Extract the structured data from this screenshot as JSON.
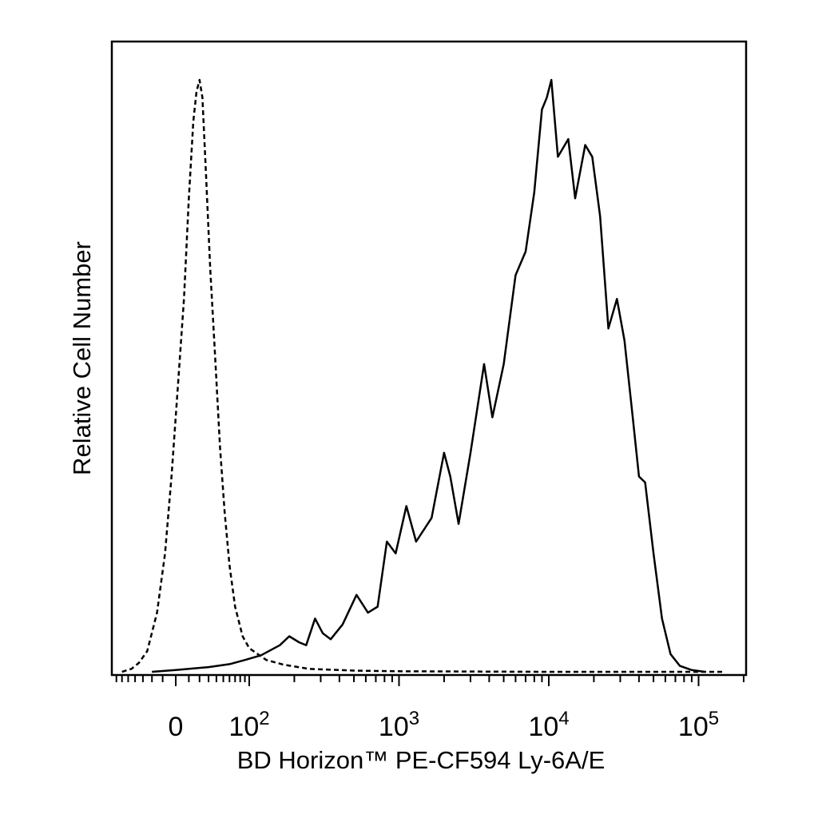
{
  "chart_data": {
    "type": "line",
    "title": "",
    "xlabel": "BD Horizon™ PE-CF594 Ly-6A/E",
    "ylabel": "Relative Cell Number",
    "x_scale": "biexponential",
    "xlim": [
      -100,
      180000
    ],
    "ylim": [
      0,
      100
    ],
    "grid": false,
    "legend": "none",
    "x_tick_labels": [
      {
        "value": 0,
        "label": "0",
        "exp": ""
      },
      {
        "value": 100,
        "label": "10",
        "exp": "2"
      },
      {
        "value": 1000,
        "label": "10",
        "exp": "3"
      },
      {
        "value": 10000,
        "label": "10",
        "exp": "4"
      },
      {
        "value": 100000,
        "label": "10",
        "exp": "5"
      }
    ],
    "series": [
      {
        "style": "dashed",
        "color": "#000000",
        "points": [
          [
            -60,
            0
          ],
          [
            -45,
            0.5
          ],
          [
            -35,
            1.5
          ],
          [
            -25,
            3.5
          ],
          [
            -15,
            10
          ],
          [
            -8,
            20
          ],
          [
            -3,
            33
          ],
          [
            2,
            50
          ],
          [
            6,
            63
          ],
          [
            10,
            80
          ],
          [
            14,
            93
          ],
          [
            17,
            98
          ],
          [
            20,
            100
          ],
          [
            23,
            97
          ],
          [
            27,
            84
          ],
          [
            32,
            68
          ],
          [
            38,
            54
          ],
          [
            45,
            38
          ],
          [
            52,
            27
          ],
          [
            60,
            18
          ],
          [
            70,
            11
          ],
          [
            85,
            6
          ],
          [
            100,
            4
          ],
          [
            130,
            2
          ],
          [
            170,
            1.2
          ],
          [
            250,
            0.5
          ],
          [
            500,
            0.2
          ],
          [
            1000,
            0.1
          ],
          [
            10000,
            0
          ],
          [
            150000,
            0
          ]
        ]
      },
      {
        "style": "solid",
        "color": "#000000",
        "points": [
          [
            -20,
            0
          ],
          [
            0,
            0.3
          ],
          [
            30,
            0.8
          ],
          [
            60,
            1.3
          ],
          [
            90,
            2
          ],
          [
            120,
            2.8
          ],
          [
            160,
            4.5
          ],
          [
            185,
            6
          ],
          [
            215,
            5
          ],
          [
            240,
            4.5
          ],
          [
            275,
            9
          ],
          [
            310,
            6.5
          ],
          [
            350,
            5.5
          ],
          [
            420,
            8
          ],
          [
            520,
            13
          ],
          [
            620,
            10
          ],
          [
            720,
            11
          ],
          [
            830,
            22
          ],
          [
            950,
            20
          ],
          [
            1120,
            28
          ],
          [
            1300,
            22
          ],
          [
            1650,
            26
          ],
          [
            2000,
            37
          ],
          [
            2200,
            33
          ],
          [
            2500,
            25
          ],
          [
            3000,
            37
          ],
          [
            3700,
            52
          ],
          [
            4200,
            43
          ],
          [
            5000,
            52
          ],
          [
            6000,
            67
          ],
          [
            7000,
            71
          ],
          [
            8000,
            81
          ],
          [
            9000,
            95
          ],
          [
            9700,
            97
          ],
          [
            10400,
            100
          ],
          [
            11500,
            87
          ],
          [
            13500,
            90
          ],
          [
            15000,
            80
          ],
          [
            17500,
            89
          ],
          [
            19500,
            87
          ],
          [
            22000,
            77
          ],
          [
            25000,
            58
          ],
          [
            28500,
            63
          ],
          [
            32000,
            56
          ],
          [
            36000,
            44
          ],
          [
            40000,
            33
          ],
          [
            44000,
            32
          ],
          [
            50000,
            20
          ],
          [
            57000,
            9
          ],
          [
            65000,
            3
          ],
          [
            75000,
            1
          ],
          [
            90000,
            0.3
          ],
          [
            110000,
            0
          ]
        ]
      }
    ]
  }
}
